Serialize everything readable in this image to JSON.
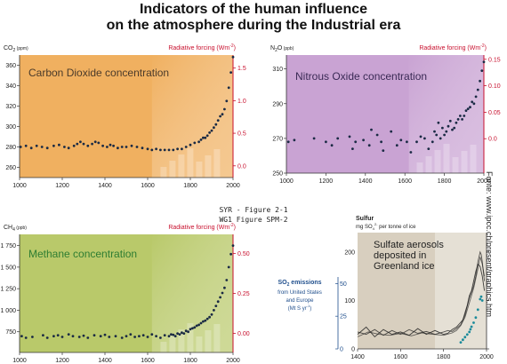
{
  "title_line1": "Indicators of the human influence",
  "title_line2": "on the atmosphere during the Industrial era",
  "caption_line1": "SYR - Figure 2-1",
  "caption_line2": "WG1 Figure SPM-2",
  "side_note": "Fonte: www.ipcc.ch/present/graphics.htm",
  "colors": {
    "forcing": "#c8102e",
    "co2_bg": "#f0b060",
    "n2o_bg": "#c9a3d3",
    "ch4_bg": "#b9c96a",
    "sulfur_bg": "#d8cfbf",
    "points": "#1a2a44",
    "co2_label": "#4a3a2a",
    "ch4_label": "#2e7d32",
    "n2o_label": "#3a2a55",
    "so2_label": "#1f4e8c"
  },
  "chart_data": [
    {
      "type": "scatter",
      "title": "Carbon Dioxide concentration",
      "ylabel": "CO2 (ppm)",
      "ylabel_main": "CO",
      "ylabel_sub": "2",
      "ylabel_unit": "(ppm)",
      "y2label": "Radiative forcing (Wm-2)",
      "y2label_main": "Radiative forcing (Wm",
      "y2label_sup": "-2",
      "y2label_close": ")",
      "xlim": [
        1000,
        2000
      ],
      "ylim": [
        250,
        370
      ],
      "y2lim": [
        -0.18,
        1.7
      ],
      "xticks": [
        1000,
        1200,
        1400,
        1600,
        1800,
        2000
      ],
      "yticks": [
        260,
        280,
        300,
        320,
        340,
        360
      ],
      "y2ticks": [
        0.0,
        0.5,
        1.0,
        1.5
      ],
      "y2tick_labels": [
        "0.0",
        "0.5",
        "1.0",
        "1.5"
      ],
      "points": [
        [
          1005,
          280
        ],
        [
          1030,
          281
        ],
        [
          1055,
          279
        ],
        [
          1080,
          281
        ],
        [
          1105,
          280
        ],
        [
          1130,
          279
        ],
        [
          1160,
          281
        ],
        [
          1185,
          282
        ],
        [
          1210,
          280
        ],
        [
          1230,
          279
        ],
        [
          1255,
          281
        ],
        [
          1270,
          283
        ],
        [
          1285,
          285
        ],
        [
          1300,
          283
        ],
        [
          1320,
          281
        ],
        [
          1340,
          283
        ],
        [
          1355,
          285
        ],
        [
          1370,
          284
        ],
        [
          1390,
          281
        ],
        [
          1410,
          280
        ],
        [
          1425,
          282
        ],
        [
          1440,
          281
        ],
        [
          1460,
          279
        ],
        [
          1480,
          280
        ],
        [
          1500,
          280
        ],
        [
          1525,
          281
        ],
        [
          1550,
          280
        ],
        [
          1575,
          279
        ],
        [
          1600,
          278
        ],
        [
          1620,
          277
        ],
        [
          1640,
          278
        ],
        [
          1660,
          277
        ],
        [
          1680,
          277
        ],
        [
          1700,
          277
        ],
        [
          1720,
          277
        ],
        [
          1740,
          278
        ],
        [
          1760,
          278
        ],
        [
          1780,
          280
        ],
        [
          1800,
          282
        ],
        [
          1820,
          284
        ],
        [
          1840,
          285
        ],
        [
          1850,
          287
        ],
        [
          1860,
          289
        ],
        [
          1870,
          289
        ],
        [
          1880,
          291
        ],
        [
          1890,
          294
        ],
        [
          1900,
          296
        ],
        [
          1910,
          299
        ],
        [
          1920,
          302
        ],
        [
          1930,
          306
        ],
        [
          1940,
          310
        ],
        [
          1950,
          312
        ],
        [
          1960,
          317
        ],
        [
          1970,
          325
        ],
        [
          1980,
          338
        ],
        [
          1990,
          353
        ],
        [
          2000,
          368
        ]
      ]
    },
    {
      "type": "scatter",
      "title": "Nitrous Oxide concentration",
      "ylabel": "N2O (ppb)",
      "ylabel_main": "N",
      "ylabel_sub": "2",
      "ylabel_tail": "O",
      "ylabel_unit": "(ppb)",
      "y2label": "Radiative forcing (Wm-2)",
      "y2label_main": "Radiative forcing (Wm",
      "y2label_sup": "-2",
      "y2label_close": ")",
      "xlim": [
        1000,
        2000
      ],
      "ylim": [
        250,
        318
      ],
      "y2lim": [
        -0.065,
        0.158
      ],
      "xticks": [
        1000,
        1200,
        1400,
        1600,
        1800,
        2000
      ],
      "yticks": [
        250,
        270,
        290,
        310
      ],
      "y2ticks": [
        0.0,
        0.05,
        0.1,
        0.15
      ],
      "y2tick_labels": [
        "0.0",
        "0.05",
        "0.10",
        "0.15"
      ],
      "points": [
        [
          1010,
          268
        ],
        [
          1040,
          269
        ],
        [
          1140,
          270
        ],
        [
          1200,
          268
        ],
        [
          1230,
          266
        ],
        [
          1260,
          270
        ],
        [
          1320,
          271
        ],
        [
          1335,
          264
        ],
        [
          1350,
          268
        ],
        [
          1390,
          269
        ],
        [
          1420,
          266
        ],
        [
          1430,
          275
        ],
        [
          1460,
          272
        ],
        [
          1480,
          268
        ],
        [
          1490,
          263
        ],
        [
          1530,
          274
        ],
        [
          1560,
          266
        ],
        [
          1580,
          269
        ],
        [
          1610,
          268
        ],
        [
          1630,
          262
        ],
        [
          1660,
          268
        ],
        [
          1680,
          271
        ],
        [
          1700,
          270
        ],
        [
          1720,
          264
        ],
        [
          1740,
          268
        ],
        [
          1750,
          274
        ],
        [
          1760,
          272
        ],
        [
          1770,
          279
        ],
        [
          1780,
          270
        ],
        [
          1790,
          276
        ],
        [
          1800,
          272
        ],
        [
          1810,
          274
        ],
        [
          1820,
          277
        ],
        [
          1830,
          280
        ],
        [
          1840,
          275
        ],
        [
          1850,
          276
        ],
        [
          1860,
          279
        ],
        [
          1870,
          281
        ],
        [
          1880,
          283
        ],
        [
          1890,
          281
        ],
        [
          1900,
          283
        ],
        [
          1910,
          286
        ],
        [
          1920,
          287
        ],
        [
          1930,
          288
        ],
        [
          1940,
          291
        ],
        [
          1950,
          290
        ],
        [
          1960,
          294
        ],
        [
          1970,
          298
        ],
        [
          1980,
          303
        ],
        [
          1990,
          309
        ],
        [
          2000,
          314
        ]
      ]
    },
    {
      "type": "scatter",
      "title": "Methane concentration",
      "ylabel": "CH4 (ppb)",
      "ylabel_main": "CH",
      "ylabel_sub": "4",
      "ylabel_unit": "(ppb)",
      "y2label": "Radiative forcing (Wm-2)",
      "y2label_main": "Radiative forcing (Wm",
      "y2label_sup": "-2",
      "y2label_close": ")",
      "xlim": [
        1000,
        2000
      ],
      "ylim": [
        510,
        1880
      ],
      "y2lim": [
        -0.12,
        0.62
      ],
      "xticks": [
        1000,
        1200,
        1400,
        1600,
        1800,
        2000
      ],
      "yticks": [
        750,
        1000,
        1250,
        1500,
        1750
      ],
      "ytick_labels": [
        "750",
        "1 000",
        "1 250",
        "1 500",
        "1 750"
      ],
      "y2ticks": [
        0.0,
        0.25,
        0.5
      ],
      "y2tick_labels": [
        "0.00",
        "0.25",
        "0.50"
      ],
      "points": [
        [
          1010,
          700
        ],
        [
          1030,
          680
        ],
        [
          1060,
          690
        ],
        [
          1110,
          710
        ],
        [
          1130,
          680
        ],
        [
          1160,
          700
        ],
        [
          1180,
          710
        ],
        [
          1200,
          690
        ],
        [
          1230,
          720
        ],
        [
          1250,
          700
        ],
        [
          1280,
          690
        ],
        [
          1300,
          705
        ],
        [
          1320,
          680
        ],
        [
          1350,
          710
        ],
        [
          1380,
          700
        ],
        [
          1400,
          715
        ],
        [
          1420,
          690
        ],
        [
          1450,
          700
        ],
        [
          1480,
          680
        ],
        [
          1500,
          700
        ],
        [
          1520,
          720
        ],
        [
          1540,
          690
        ],
        [
          1560,
          700
        ],
        [
          1580,
          710
        ],
        [
          1600,
          690
        ],
        [
          1620,
          720
        ],
        [
          1640,
          700
        ],
        [
          1660,
          680
        ],
        [
          1680,
          710
        ],
        [
          1700,
          700
        ],
        [
          1710,
          720
        ],
        [
          1720,
          715
        ],
        [
          1730,
          700
        ],
        [
          1740,
          730
        ],
        [
          1750,
          720
        ],
        [
          1760,
          740
        ],
        [
          1770,
          730
        ],
        [
          1780,
          760
        ],
        [
          1790,
          750
        ],
        [
          1800,
          780
        ],
        [
          1810,
          790
        ],
        [
          1820,
          800
        ],
        [
          1830,
          820
        ],
        [
          1840,
          830
        ],
        [
          1850,
          850
        ],
        [
          1860,
          870
        ],
        [
          1870,
          880
        ],
        [
          1880,
          900
        ],
        [
          1890,
          920
        ],
        [
          1900,
          950
        ],
        [
          1910,
          1000
        ],
        [
          1920,
          1050
        ],
        [
          1930,
          1100
        ],
        [
          1940,
          1150
        ],
        [
          1950,
          1200
        ],
        [
          1960,
          1260
        ],
        [
          1970,
          1350
        ],
        [
          1980,
          1500
        ],
        [
          1990,
          1650
        ],
        [
          2000,
          1750
        ]
      ]
    },
    {
      "type": "line",
      "title": "Sulfate aerosols deposited in Greenland ice",
      "title_lines": [
        "Sulfate aerosols",
        "deposited in",
        "Greenland ice"
      ],
      "ylabel": "Sulfur mg SO4 2- per tonne of ice",
      "ylabel_word": "Sulfur",
      "ylabel_unit_pre": "mg SO",
      "ylabel_unit_sub": "4",
      "ylabel_unit_sup": "2-",
      "ylabel_unit_post": " per tonne of ice",
      "y2label": "SO2 emissions from United States and Europe (Mt S yr-1)",
      "y2label_line1_pre": "SO",
      "y2label_line1_sub": "2",
      "y2label_line1_post": " emissions",
      "y2label_line2": "from United States",
      "y2label_line3": "and Europe",
      "y2label_line4_pre": "(Mt S yr",
      "y2label_line4_sup": "-1",
      "y2label_line4_post": ")",
      "xlim": [
        1400,
        2000
      ],
      "ylim": [
        0,
        240
      ],
      "y2lim": [
        0,
        55
      ],
      "xticks": [
        1400,
        1600,
        1800,
        2000
      ],
      "yticks": [
        0,
        100,
        200
      ],
      "y2ticks": [
        0,
        25,
        50
      ],
      "series": [
        {
          "x": [
            1400,
            1440,
            1480,
            1520,
            1560,
            1600,
            1640,
            1680,
            1720,
            1760,
            1800,
            1820,
            1840,
            1860,
            1880,
            1890,
            1900,
            1910,
            1920,
            1930,
            1940,
            1950,
            1960,
            1970,
            1980,
            1990
          ],
          "y": [
            30,
            45,
            25,
            40,
            30,
            35,
            28,
            42,
            30,
            38,
            30,
            32,
            40,
            45,
            55,
            60,
            75,
            90,
            110,
            120,
            140,
            160,
            175,
            170,
            150,
            120
          ]
        },
        {
          "x": [
            1400,
            1440,
            1480,
            1520,
            1560,
            1600,
            1640,
            1680,
            1720,
            1760,
            1800,
            1820,
            1840,
            1860,
            1880,
            1900,
            1920,
            1940,
            1950,
            1960,
            1970,
            1975,
            1980,
            1990
          ],
          "y": [
            35,
            30,
            40,
            28,
            38,
            30,
            40,
            32,
            36,
            30,
            35,
            38,
            36,
            42,
            50,
            70,
            105,
            130,
            150,
            180,
            200,
            195,
            180,
            140
          ]
        },
        {
          "x": [
            1400,
            1450,
            1500,
            1550,
            1600,
            1650,
            1700,
            1750,
            1800,
            1840,
            1860,
            1880,
            1900,
            1920,
            1940,
            1960,
            1970,
            1980,
            1990
          ],
          "y": [
            25,
            35,
            30,
            28,
            32,
            27,
            33,
            30,
            28,
            33,
            38,
            48,
            65,
            95,
            125,
            165,
            190,
            175,
            150
          ]
        }
      ],
      "emissions": [
        [
          1880,
          5
        ],
        [
          1890,
          7
        ],
        [
          1900,
          9
        ],
        [
          1910,
          11
        ],
        [
          1920,
          13
        ],
        [
          1925,
          15
        ],
        [
          1930,
          17
        ],
        [
          1940,
          20
        ],
        [
          1950,
          24
        ],
        [
          1960,
          30
        ],
        [
          1970,
          38
        ],
        [
          1975,
          40
        ],
        [
          1980,
          37
        ]
      ]
    }
  ]
}
